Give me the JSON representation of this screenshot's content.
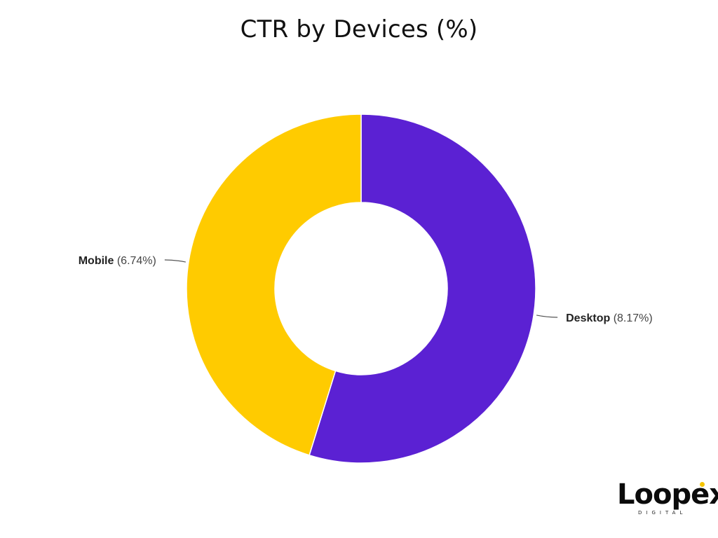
{
  "chart_data": {
    "type": "pie",
    "variant": "donut",
    "title": "CTR by Devices (%)",
    "unit": "%",
    "slices": [
      {
        "label": "Desktop",
        "value": 8.17,
        "value_text": "(8.17%)",
        "color": "#5b21d3"
      },
      {
        "label": "Mobile",
        "value": 6.74,
        "value_text": "(6.74%)",
        "color": "#ffcb00"
      }
    ]
  },
  "logo": {
    "brand": "Loopex",
    "tagline": "DIGITAL",
    "accent_color": "#f5c400"
  }
}
